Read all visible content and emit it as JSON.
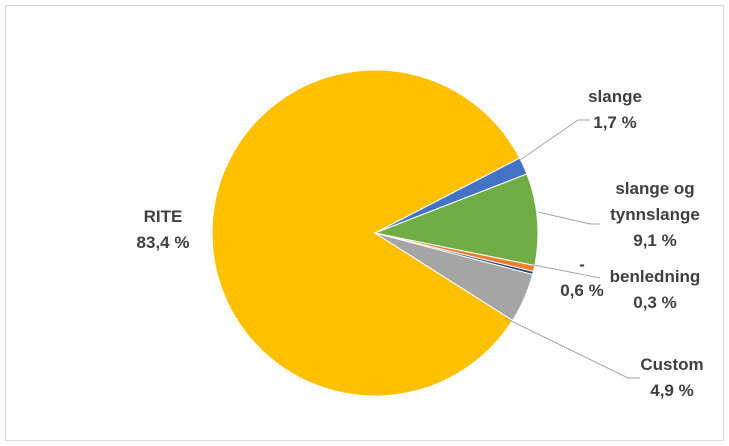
{
  "chart_data": {
    "type": "pie",
    "categories": [
      "RITE",
      "slange",
      "slange og tynnslange",
      "-",
      "benledning",
      "Custom"
    ],
    "values": [
      83.4,
      1.7,
      9.1,
      0.6,
      0.3,
      4.9
    ],
    "value_labels": [
      "83,4 %",
      "1,7 %",
      "9,1 %",
      "0,6 %",
      "0,3 %",
      "4,9 %"
    ],
    "colors": [
      "#FFC000",
      "#4472C4",
      "#70AD47",
      "#ED7D31",
      "#264478",
      "#A5A5A5"
    ]
  }
}
